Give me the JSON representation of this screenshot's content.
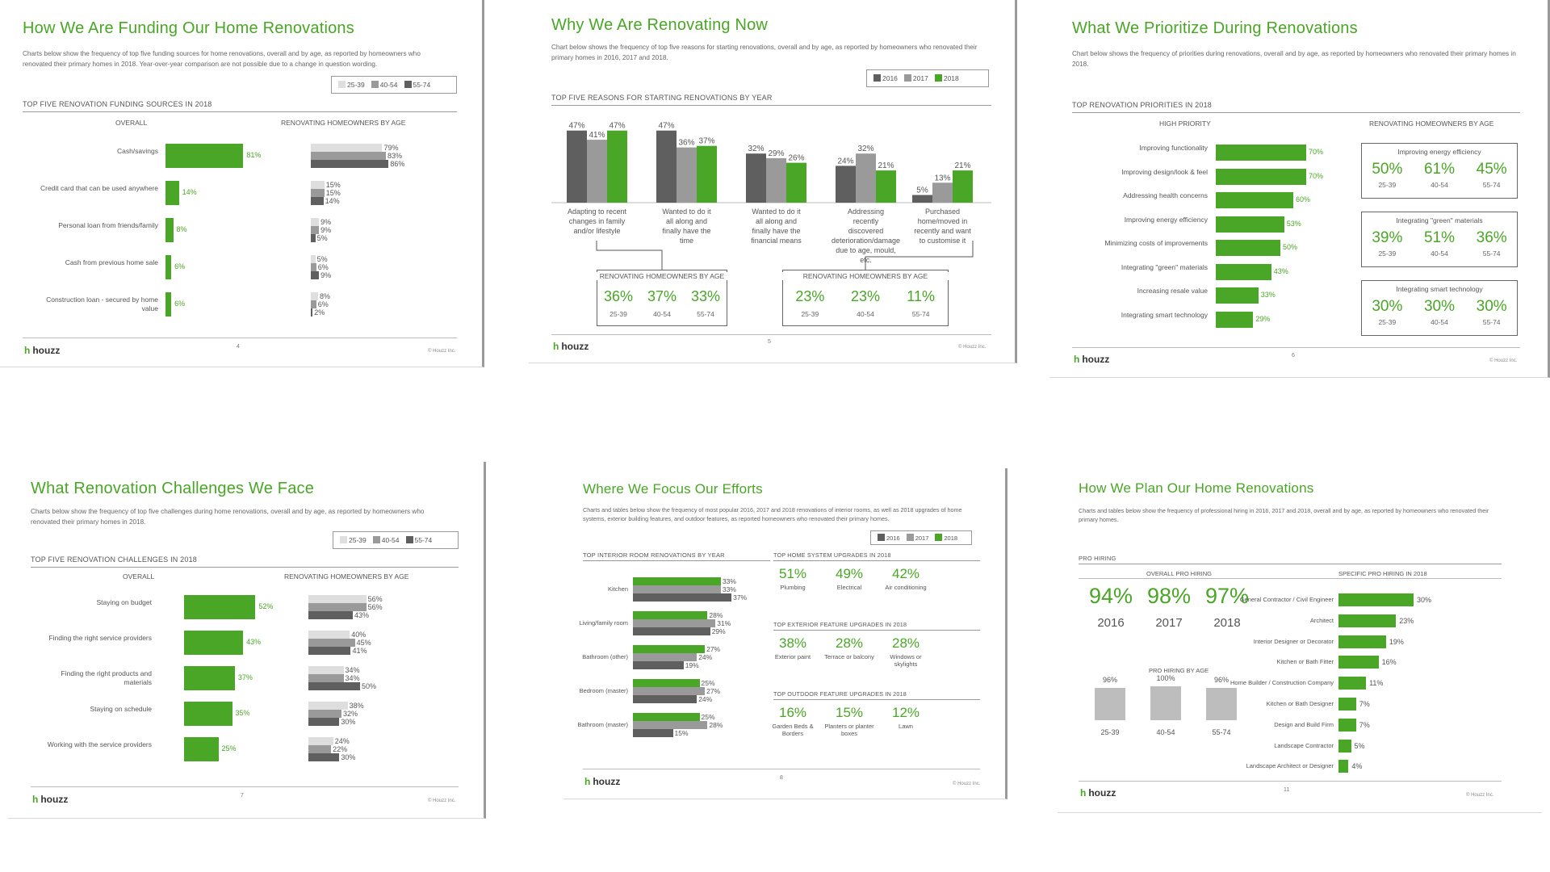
{
  "colors": {
    "green": "#4aa626",
    "dark": "#5f5f5f",
    "mid": "#9a9a9a",
    "light": "#dedede",
    "outline": "#999999"
  },
  "common": {
    "logo_text": "houzz",
    "logo_icon": "houzz-h-icon",
    "copyright": "© Houzz Inc.",
    "legend_age": [
      "25-39",
      "40-54",
      "55-74"
    ],
    "legend_year": [
      "2016",
      "2017",
      "2018"
    ]
  },
  "slide1": {
    "title": "How We Are Funding Our Home Renovations",
    "desc": "Charts below show the frequency of top five funding sources for home renovations, overall and by age, as reported by homeowners who renovated their primary homes in 2018. Year-over-year comparison are not possible due to a change in question wording.",
    "section": "TOP FIVE RENOVATION FUNDING SOURCES IN 2018",
    "col_overall": "OVERALL",
    "col_age": "RENOVATING HOMEOWNERS BY AGE",
    "page": "4",
    "rows": [
      {
        "label": "Cash/savings",
        "overall": "81%",
        "ages": [
          "79%",
          "83%",
          "86%"
        ]
      },
      {
        "label": "Credit card that can be used anywhere",
        "overall": "14%",
        "ages": [
          "15%",
          "15%",
          "14%"
        ]
      },
      {
        "label": "Personal loan from friends/family",
        "overall": "8%",
        "ages": [
          "9%",
          "9%",
          "5%"
        ]
      },
      {
        "label": "Cash from previous home sale",
        "overall": "6%",
        "ages": [
          "5%",
          "6%",
          "9%"
        ]
      },
      {
        "label": "Construction loan - secured by home value",
        "overall": "6%",
        "ages": [
          "8%",
          "6%",
          "2%"
        ]
      }
    ]
  },
  "slide2": {
    "title": "Why We Are Renovating Now",
    "desc": "Chart below shows the frequency of top five reasons for starting renovations, overall and by age, as reported by homeowners who renovated their primary homes in 2016, 2017 and 2018.",
    "section": "TOP FIVE REASONS FOR STARTING RENOVATIONS BY YEAR",
    "page": "5",
    "box_head": "RENOVATING HOMEOWNERS BY AGE",
    "box1": [
      "36%",
      "37%",
      "33%"
    ],
    "box2": [
      "23%",
      "23%",
      "11%"
    ]
  },
  "slide3": {
    "title": "What We Prioritize During Renovations",
    "desc": "Chart below shows the frequency of priorities during renovations, overall and by age, as reported by homeowners who renovated their primary homes in 2018.",
    "section": "TOP RENOVATION PRIORITIES IN 2018",
    "col_high": "HIGH PRIORITY",
    "col_age": "RENOVATING HOMEOWNERS BY AGE",
    "page": "6",
    "rows": [
      {
        "label": "Improving functionality",
        "value": "70%"
      },
      {
        "label": "Improving design/look & feel",
        "value": "70%"
      },
      {
        "label": "Addressing health concerns",
        "value": "60%"
      },
      {
        "label": "Improving energy efficiency",
        "value": "53%"
      },
      {
        "label": "Minimizing costs of improvements",
        "value": "50%"
      },
      {
        "label": "Integrating \"green\" materials",
        "value": "43%"
      },
      {
        "label": "Increasing resale value",
        "value": "33%"
      },
      {
        "label": "Integrating smart technology",
        "value": "29%"
      }
    ],
    "boxes": [
      {
        "title": "Improving energy efficiency",
        "values": [
          "50%",
          "61%",
          "45%"
        ]
      },
      {
        "title": "Integrating \"green\" materials",
        "values": [
          "39%",
          "51%",
          "36%"
        ]
      },
      {
        "title": "Integrating smart technology",
        "values": [
          "30%",
          "30%",
          "30%"
        ]
      }
    ]
  },
  "slide4": {
    "title": "What Renovation Challenges We Face",
    "desc": "Charts below show the frequency of top five challenges during home renovations, overall and by age, as reported by homeowners who renovated their primary homes in 2018.",
    "section": "TOP FIVE RENOVATION CHALLENGES IN 2018",
    "col_overall": "OVERALL",
    "col_age": "RENOVATING HOMEOWNERS BY AGE",
    "page": "7",
    "rows": [
      {
        "label": "Staying on budget",
        "overall": "52%",
        "ages": [
          "56%",
          "56%",
          "43%"
        ]
      },
      {
        "label": "Finding the right service providers",
        "overall": "43%",
        "ages": [
          "40%",
          "45%",
          "41%"
        ]
      },
      {
        "label": "Finding the right products and materials",
        "overall": "37%",
        "ages": [
          "34%",
          "34%",
          "50%"
        ]
      },
      {
        "label": "Staying on schedule",
        "overall": "35%",
        "ages": [
          "38%",
          "32%",
          "30%"
        ]
      },
      {
        "label": "Working with the service providers",
        "overall": "25%",
        "ages": [
          "24%",
          "22%",
          "30%"
        ]
      }
    ]
  },
  "slide5": {
    "title": "Where We Focus Our Efforts",
    "desc": "Charts and tables below show the frequency of most popular 2016, 2017 and 2018 renovations of interior rooms, as well as 2018 upgrades of home systems, exterior building features, and outdoor features, as reported homeowners who renovated their primary homes.",
    "section_rooms": "TOP INTERIOR ROOM RENOVATIONS BY YEAR",
    "page": "8",
    "rooms": [
      {
        "label": "Kitchen",
        "values": [
          "37%",
          "33%",
          "33%"
        ]
      },
      {
        "label": "Living/family room",
        "values": [
          "29%",
          "31%",
          "28%"
        ]
      },
      {
        "label": "Bathroom (other)",
        "values": [
          "19%",
          "24%",
          "27%"
        ]
      },
      {
        "label": "Bedroom (master)",
        "values": [
          "24%",
          "27%",
          "25%"
        ]
      },
      {
        "label": "Bathroom (master)",
        "values": [
          "15%",
          "28%",
          "25%"
        ]
      }
    ],
    "groups": [
      {
        "title": "TOP HOME SYSTEM UPGRADES IN 2018",
        "items": [
          {
            "value": "51%",
            "label": "Plumbing"
          },
          {
            "value": "49%",
            "label": "Electrical"
          },
          {
            "value": "42%",
            "label": "Air conditioning"
          }
        ]
      },
      {
        "title": "TOP EXTERIOR FEATURE UPGRADES IN 2018",
        "items": [
          {
            "value": "38%",
            "label": "Exterior paint"
          },
          {
            "value": "28%",
            "label": "Terrace or balcony"
          },
          {
            "value": "28%",
            "label": "Windows or skylights"
          }
        ]
      },
      {
        "title": "TOP OUTDOOR FEATURE UPGRADES IN 2018",
        "items": [
          {
            "value": "16%",
            "label": "Garden Beds & Borders"
          },
          {
            "value": "15%",
            "label": "Planters or planter boxes"
          },
          {
            "value": "12%",
            "label": "Lawn"
          }
        ]
      }
    ]
  },
  "slide6": {
    "title": "How We Plan Our Home Renovations",
    "desc": "Charts and tables below show the frequency of professional hiring in 2016, 2017 and 2018, overall and by age, as reported by homeowners who renovated their primary homes.",
    "section": "PRO HIRING",
    "col_overall": "OVERALL PRO HIRING",
    "col_specific": "SPECIFIC PRO HIRING IN 2018",
    "col_age": "PRO HIRING BY AGE",
    "page": "11",
    "overall": [
      {
        "value": "94%",
        "year": "2016"
      },
      {
        "value": "98%",
        "year": "2017"
      },
      {
        "value": "97%",
        "year": "2018"
      }
    ],
    "by_age": [
      {
        "value": "96%",
        "age": "25-39"
      },
      {
        "value": "100%",
        "age": "40-54"
      },
      {
        "value": "96%",
        "age": "55-74"
      }
    ],
    "specific": [
      {
        "label": "General Contractor / Civil Engineer",
        "value": "30%"
      },
      {
        "label": "Architect",
        "value": "23%"
      },
      {
        "label": "Interior Designer or Decorator",
        "value": "19%"
      },
      {
        "label": "Kitchen or Bath Fitter",
        "value": "16%"
      },
      {
        "label": "Home Builder / Construction Company",
        "value": "11%"
      },
      {
        "label": "Kitchen or Bath Designer",
        "value": "7%"
      },
      {
        "label": "Design and Build Firm",
        "value": "7%"
      },
      {
        "label": "Landscape Contractor",
        "value": "5%"
      },
      {
        "label": "Landscape Architect or Designer",
        "value": "4%"
      }
    ]
  },
  "chart_data": [
    {
      "type": "bar",
      "title": "TOP FIVE RENOVATION FUNDING SOURCES IN 2018",
      "categories": [
        "Cash/savings",
        "Credit card that can be used anywhere",
        "Personal loan from friends/family",
        "Cash from previous home sale",
        "Construction loan - secured by home value"
      ],
      "series": [
        {
          "name": "OVERALL",
          "values": [
            81,
            14,
            8,
            6,
            6
          ]
        },
        {
          "name": "25-39",
          "values": [
            79,
            15,
            9,
            5,
            8
          ]
        },
        {
          "name": "40-54",
          "values": [
            83,
            15,
            9,
            6,
            6
          ]
        },
        {
          "name": "55-74",
          "values": [
            86,
            14,
            5,
            9,
            2
          ]
        }
      ]
    },
    {
      "type": "bar",
      "title": "TOP FIVE REASONS FOR STARTING RENOVATIONS BY YEAR",
      "categories": [
        "Adapting to recent changes in family and/or lifestyle",
        "Wanted to do it all along and finally have the time",
        "Wanted to do it all along and finally have the financial means",
        "Addressing recently discovered deterioration/damage due to age, mould, etc.",
        "Purchased home/moved in recently and want to customise it"
      ],
      "series": [
        {
          "name": "2016",
          "values": [
            47,
            47,
            32,
            24,
            5
          ]
        },
        {
          "name": "2017",
          "values": [
            41,
            36,
            29,
            32,
            13
          ]
        },
        {
          "name": "2018",
          "values": [
            47,
            37,
            26,
            21,
            21
          ]
        }
      ],
      "ylim": [
        0,
        50
      ]
    },
    {
      "type": "bar",
      "title": "TOP RENOVATION PRIORITIES IN 2018",
      "categories": [
        "Improving functionality",
        "Improving design/look & feel",
        "Addressing health concerns",
        "Improving energy efficiency",
        "Minimizing costs of improvements",
        "Integrating \"green\" materials",
        "Increasing resale value",
        "Integrating smart technology"
      ],
      "values": [
        70,
        70,
        60,
        53,
        50,
        43,
        33,
        29
      ]
    },
    {
      "type": "bar",
      "title": "TOP FIVE RENOVATION CHALLENGES IN 2018",
      "categories": [
        "Staying on budget",
        "Finding the right service providers",
        "Finding the right products and materials",
        "Staying on schedule",
        "Working with the service providers"
      ],
      "series": [
        {
          "name": "OVERALL",
          "values": [
            52,
            43,
            37,
            35,
            25
          ]
        },
        {
          "name": "25-39",
          "values": [
            56,
            40,
            34,
            38,
            24
          ]
        },
        {
          "name": "40-54",
          "values": [
            56,
            45,
            34,
            32,
            22
          ]
        },
        {
          "name": "55-74",
          "values": [
            43,
            41,
            50,
            30,
            30
          ]
        }
      ]
    },
    {
      "type": "bar",
      "title": "TOP INTERIOR ROOM RENOVATIONS BY YEAR",
      "categories": [
        "Kitchen",
        "Living/family room",
        "Bathroom (other)",
        "Bedroom (master)",
        "Bathroom (master)"
      ],
      "series": [
        {
          "name": "2016",
          "values": [
            37,
            29,
            19,
            24,
            15
          ]
        },
        {
          "name": "2017",
          "values": [
            33,
            31,
            24,
            27,
            28
          ]
        },
        {
          "name": "2018",
          "values": [
            33,
            28,
            27,
            25,
            25
          ]
        }
      ]
    },
    {
      "type": "bar",
      "title": "SPECIFIC PRO HIRING IN 2018",
      "categories": [
        "General Contractor / Civil Engineer",
        "Architect",
        "Interior Designer or Decorator",
        "Kitchen or Bath Fitter",
        "Home Builder / Construction Company",
        "Kitchen or Bath Designer",
        "Design and Build Firm",
        "Landscape Contractor",
        "Landscape Architect or Designer"
      ],
      "values": [
        30,
        23,
        19,
        16,
        11,
        7,
        7,
        5,
        4
      ]
    },
    {
      "type": "bar",
      "title": "PRO HIRING BY AGE",
      "categories": [
        "25-39",
        "40-54",
        "55-74"
      ],
      "values": [
        96,
        100,
        96
      ]
    }
  ]
}
